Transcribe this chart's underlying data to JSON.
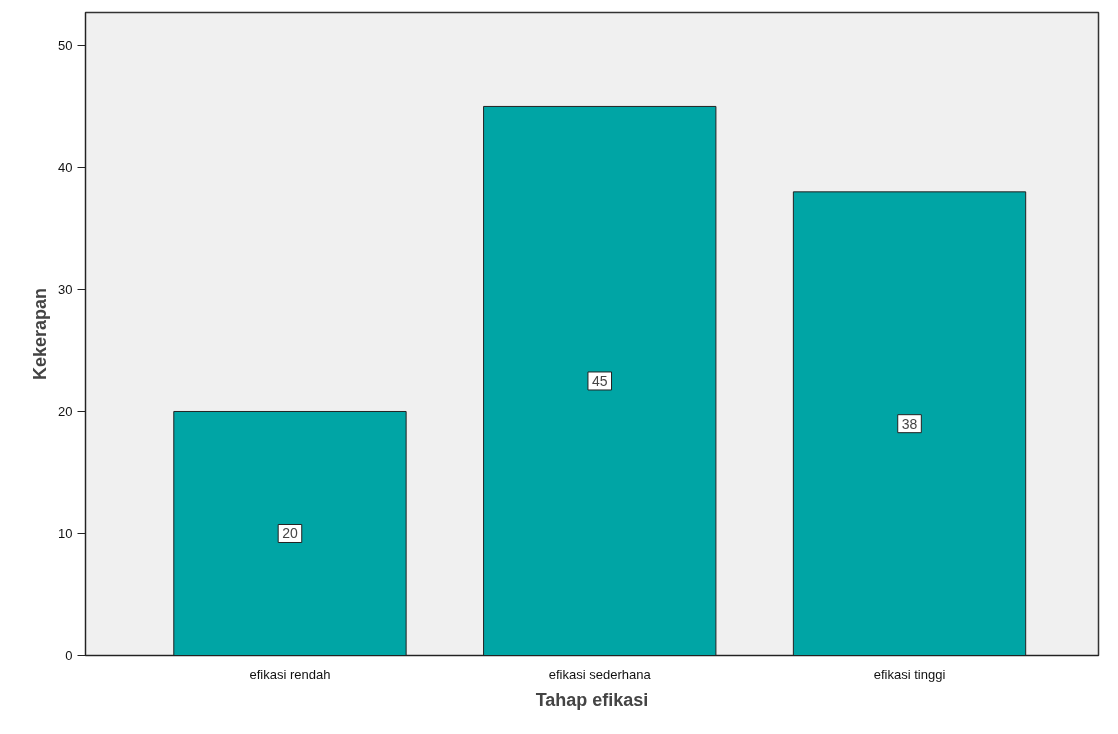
{
  "chart_data": {
    "type": "bar",
    "xlabel": "Tahap efikasi",
    "ylabel": "Kekerapan",
    "categories": [
      "efikasi rendah",
      "efikasi sederhana",
      "efikasi tinggi"
    ],
    "values": [
      20,
      45,
      38
    ],
    "color": "#00a5a5",
    "ylim": [
      0,
      52.7
    ],
    "yticks": [
      0,
      10,
      20,
      30,
      40,
      50
    ],
    "grid": false,
    "data_labels": true
  }
}
